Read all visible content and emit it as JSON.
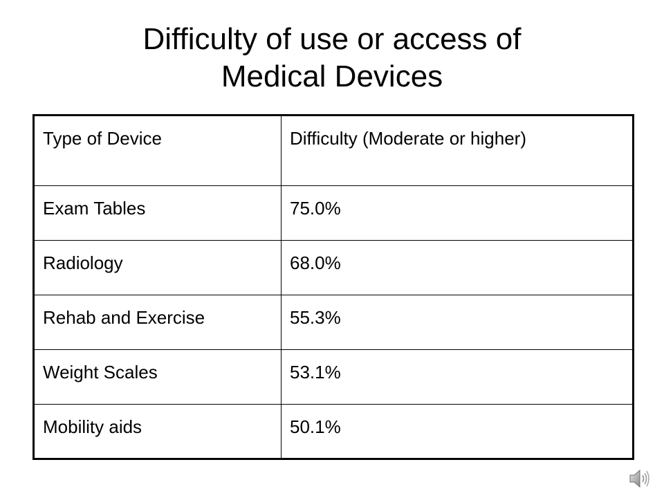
{
  "title": {
    "line1": "Difficulty of use or access of",
    "line2": "Medical Devices"
  },
  "table": {
    "headers": [
      "Type of Device",
      "Difficulty (Moderate or higher)"
    ],
    "rows": [
      {
        "device": "Exam Tables",
        "difficulty": "75.0%"
      },
      {
        "device": "Radiology",
        "difficulty": "68.0%"
      },
      {
        "device": "Rehab and Exercise",
        "difficulty": "55.3%"
      },
      {
        "device": "Weight Scales",
        "difficulty": "53.1%"
      },
      {
        "device": "Mobility aids",
        "difficulty": "50.1%"
      }
    ]
  },
  "icons": {
    "audio": "speaker-icon"
  }
}
